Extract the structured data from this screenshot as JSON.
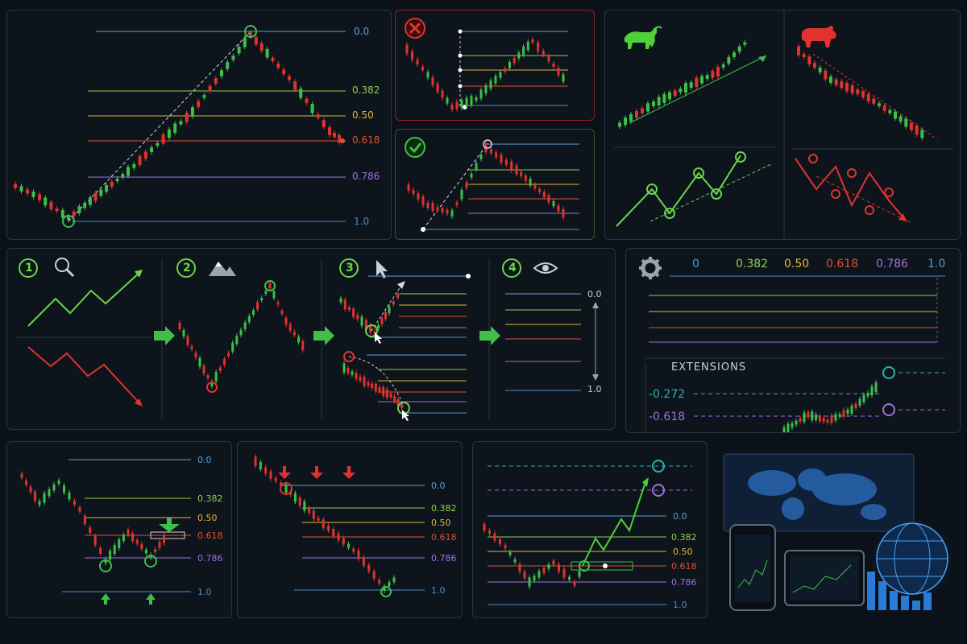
{
  "colors": {
    "bg": "#0b1118",
    "panel": "#0d141c",
    "border": "#2a3440",
    "bull": "#3fbf4a",
    "bear": "#e0332f",
    "fib_0": "#5aa0d8",
    "fib_0382": "#8ed14a",
    "fib_050": "#e6b43a",
    "fib_0618": "#e0512f",
    "fib_0786": "#a070e0",
    "fib_1": "#4a8ec8",
    "ext": "#2ab0b0"
  },
  "fib_levels": [
    "0.0",
    "0.382",
    "0.50",
    "0.618",
    "0.786",
    "1.0"
  ],
  "fib_levels_short": [
    "0.0",
    "1.0"
  ],
  "settings": {
    "levels": [
      "0",
      "0.382",
      "0.50",
      "0.618",
      "0.786",
      "1.0"
    ],
    "extensions_title": "EXTENSIONS",
    "extensions": [
      "-0.272",
      "-0.618"
    ]
  },
  "steps": [
    "1",
    "2",
    "3",
    "4"
  ],
  "icons": {
    "step1": "magnifier-icon",
    "step2": "mountain-icon",
    "step3": "cursor-icon",
    "step4": "eye-icon",
    "settings": "gear-icon",
    "wrong": "x-circle-icon",
    "right": "check-circle-icon",
    "bull": "bull-icon",
    "bear": "bear-icon"
  }
}
